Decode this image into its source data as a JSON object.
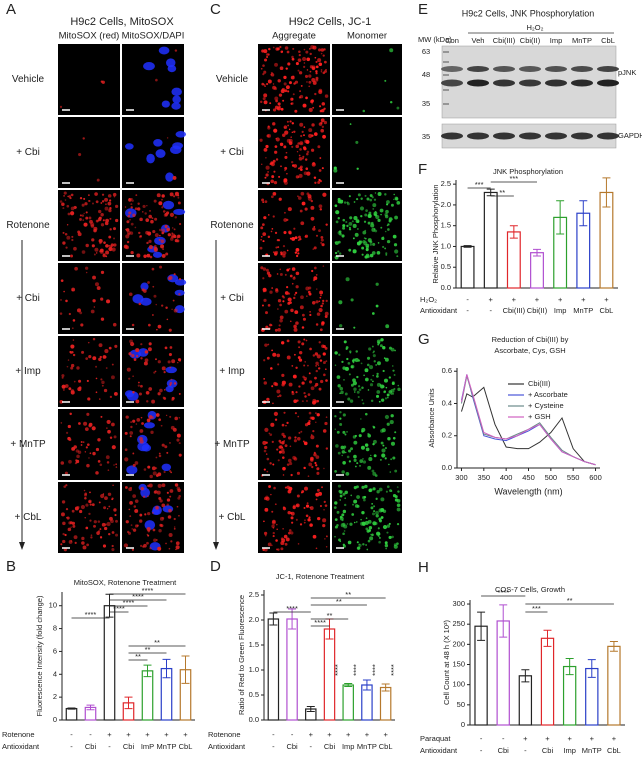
{
  "figure": {
    "panel_letters": [
      "A",
      "B",
      "C",
      "D",
      "E",
      "F",
      "G",
      "H"
    ],
    "A": {
      "title": "H9c2 Cells, MitoSOX",
      "columns": [
        "MitoSOX (red)",
        "MitoSOX/DAPI"
      ],
      "rows": [
        "Vehicle",
        "+ Cbi",
        "Rotenone",
        "+ Cbi",
        "+ Imp",
        "+ MnTP",
        "+ CbL"
      ]
    },
    "C": {
      "title": "H9c2 Cells, JC-1",
      "columns": [
        "Aggregate",
        "Monomer"
      ],
      "rows": [
        "Vehicle",
        "+ Cbi",
        "Rotenone",
        "+ Cbi",
        "+ Imp",
        "+ MnTP",
        "+ CbL"
      ]
    },
    "E": {
      "title": "H9c2 Cells, JNK Phosphorylation",
      "treatment": "H₂O₂",
      "mw_header": "MW (kDa)",
      "lanes": [
        "Con",
        "Veh",
        "Cbi(III)",
        "Cbi(II)",
        "Imp",
        "MnTP",
        "CbL"
      ],
      "mw_markers": [
        "63",
        "48",
        "35",
        "35"
      ],
      "bands": [
        "pJNK",
        "GAPDH"
      ]
    }
  },
  "chart_data": [
    {
      "type": "bar",
      "title": "MitoSOX, Rotenone Treatment",
      "y_label": "Fluorescence Intensity (fold change)",
      "conditions": [
        {
          "name": "Rotenone",
          "labels": [
            "-",
            "-",
            "+",
            "+",
            "+",
            "+",
            "+"
          ]
        },
        {
          "name": "Antioxidant",
          "labels": [
            "-",
            "Cbi",
            "-",
            "Cbi",
            "ImP",
            "MnTP",
            "CbL"
          ]
        }
      ],
      "values": [
        1.0,
        1.1,
        10.0,
        1.5,
        4.3,
        4.5,
        4.4
      ],
      "errors": [
        0.05,
        0.2,
        1.0,
        0.5,
        0.5,
        0.8,
        1.2
      ],
      "colors": [
        "#222222",
        "#b04fd0",
        "#222222",
        "#e0262a",
        "#2ca02c",
        "#2a3fc8",
        "#b5782c"
      ],
      "ylim": [
        0,
        11.2
      ],
      "yticks": [
        0,
        2,
        4,
        6,
        8,
        10
      ],
      "annotations": [
        "****",
        "****",
        "****",
        "****",
        "****",
        "**",
        "**",
        "**"
      ]
    },
    {
      "type": "bar",
      "title": "JC-1, Rotenone Treatment",
      "y_label": "Ratio of Red to Green Fluorescence",
      "conditions": [
        {
          "name": "Rotenone",
          "labels": [
            "-",
            "-",
            "+",
            "+",
            "+",
            "+",
            "+"
          ]
        },
        {
          "name": "Antioxidant",
          "labels": [
            "-",
            "Cbi",
            "-",
            "Cbi",
            "Imp",
            "MnTP",
            "CbL"
          ]
        }
      ],
      "values": [
        2.02,
        2.02,
        0.22,
        1.82,
        0.7,
        0.7,
        0.65
      ],
      "errors": [
        0.12,
        0.2,
        0.05,
        0.2,
        0.03,
        0.1,
        0.07
      ],
      "colors": [
        "#222222",
        "#b04fd0",
        "#222222",
        "#e0262a",
        "#2ca02c",
        "#2a3fc8",
        "#b5782c"
      ],
      "ylim": [
        0,
        2.6
      ],
      "yticks": [
        {
          "value": 0,
          "label": "0.0"
        },
        {
          "value": 0.5,
          "label": "0.5"
        },
        {
          "value": 1,
          "label": "1.0"
        },
        {
          "value": 1.5,
          "label": "1.5"
        },
        {
          "value": 2,
          "label": "2.0"
        },
        {
          "value": 2.5,
          "label": "2.5"
        }
      ],
      "annotations": [
        "****",
        "****",
        "**",
        "**",
        "**",
        "****",
        "****",
        "****",
        "****"
      ]
    },
    {
      "type": "bar",
      "title": "JNK Phosphorylation",
      "y_label": "Relative JNK Phosphorylation",
      "conditions": [
        {
          "name": "H₂O₂",
          "labels": [
            "-",
            "+",
            "+",
            "+",
            "+",
            "+",
            "+"
          ]
        },
        {
          "name": "Antioxidant",
          "labels": [
            "-",
            "-",
            "Cbi(III)",
            "Cbi(II)",
            "Imp",
            "MnTP",
            "CbL"
          ]
        }
      ],
      "values": [
        1.0,
        2.3,
        1.35,
        0.85,
        1.7,
        1.8,
        2.3
      ],
      "errors": [
        0.02,
        0.08,
        0.15,
        0.08,
        0.4,
        0.3,
        0.35
      ],
      "colors": [
        "#222222",
        "#222222",
        "#e0262a",
        "#b04fd0",
        "#2ca02c",
        "#2a3fc8",
        "#b5782c"
      ],
      "ylim": [
        0,
        2.6
      ],
      "yticks": [
        {
          "value": 0,
          "label": "0.0"
        },
        {
          "value": 0.5,
          "label": "0.5"
        },
        {
          "value": 1,
          "label": "1.0"
        },
        {
          "value": 1.5,
          "label": "1.5"
        },
        {
          "value": 2,
          "label": "2.0"
        },
        {
          "value": 2.5,
          "label": "2.5"
        }
      ],
      "annotations": [
        "***",
        "**",
        "***"
      ]
    },
    {
      "type": "line",
      "title": "Reduction of Cbi(III) by",
      "subtitle": "Ascorbate, Cys, GSH",
      "x_label": "Wavelength (nm)",
      "y_label": "Absorbance Units",
      "x": [
        300,
        312,
        325,
        350,
        375,
        400,
        425,
        450,
        475,
        500,
        525,
        550,
        575,
        600
      ],
      "series": [
        {
          "name": "Cbi(III)",
          "color": "#333333",
          "values": [
            0.35,
            0.46,
            0.44,
            0.5,
            0.27,
            0.13,
            0.12,
            0.12,
            0.16,
            0.22,
            0.31,
            0.12,
            0.04,
            0.02
          ]
        },
        {
          "name": "+ Ascorbate",
          "color": "#4a55d8",
          "values": [
            0.42,
            0.58,
            0.44,
            0.2,
            0.18,
            0.17,
            0.2,
            0.23,
            0.27,
            0.18,
            0.1,
            0.07,
            0.04,
            0.02
          ]
        },
        {
          "name": "+ Cysteine",
          "color": "#6b8a8a",
          "values": [
            0.4,
            0.57,
            0.45,
            0.21,
            0.19,
            0.18,
            0.21,
            0.24,
            0.28,
            0.19,
            0.11,
            0.07,
            0.04,
            0.02
          ]
        },
        {
          "name": "+ GSH",
          "color": "#d060c0",
          "values": [
            0.41,
            0.58,
            0.46,
            0.22,
            0.19,
            0.18,
            0.2,
            0.24,
            0.27,
            0.18,
            0.1,
            0.07,
            0.04,
            0.02
          ]
        }
      ],
      "xlim": [
        290,
        610
      ],
      "xticks": [
        300,
        350,
        400,
        450,
        500,
        550,
        600
      ],
      "ylim": [
        0,
        0.62
      ],
      "yticks": [
        {
          "value": 0,
          "label": "0.0"
        },
        {
          "value": 0.2,
          "label": "0.2"
        },
        {
          "value": 0.4,
          "label": "0.4"
        },
        {
          "value": 0.6,
          "label": "0.6"
        }
      ]
    },
    {
      "type": "bar",
      "title": "COS-7 Cells, Growth",
      "y_label": "Cell Count at 48 h (X 10³)",
      "conditions": [
        {
          "name": "Paraquat",
          "labels": [
            "-",
            "-",
            "+",
            "+",
            "+",
            "+",
            "+"
          ]
        },
        {
          "name": "Antioxidant",
          "labels": [
            "-",
            "Cbi",
            "-",
            "Cbi",
            "Imp",
            "MnTP",
            "CbL"
          ]
        }
      ],
      "values": [
        245,
        258,
        122,
        215,
        145,
        140,
        195
      ],
      "errors": [
        35,
        40,
        15,
        20,
        20,
        22,
        12
      ],
      "colors": [
        "#222222",
        "#b04fd0",
        "#222222",
        "#e0262a",
        "#2ca02c",
        "#2a3fc8",
        "#b5782c"
      ],
      "ylim": [
        0,
        310
      ],
      "yticks": [
        0,
        50,
        100,
        150,
        200,
        250,
        300
      ],
      "annotations": [
        "****",
        "***",
        "**"
      ]
    }
  ]
}
